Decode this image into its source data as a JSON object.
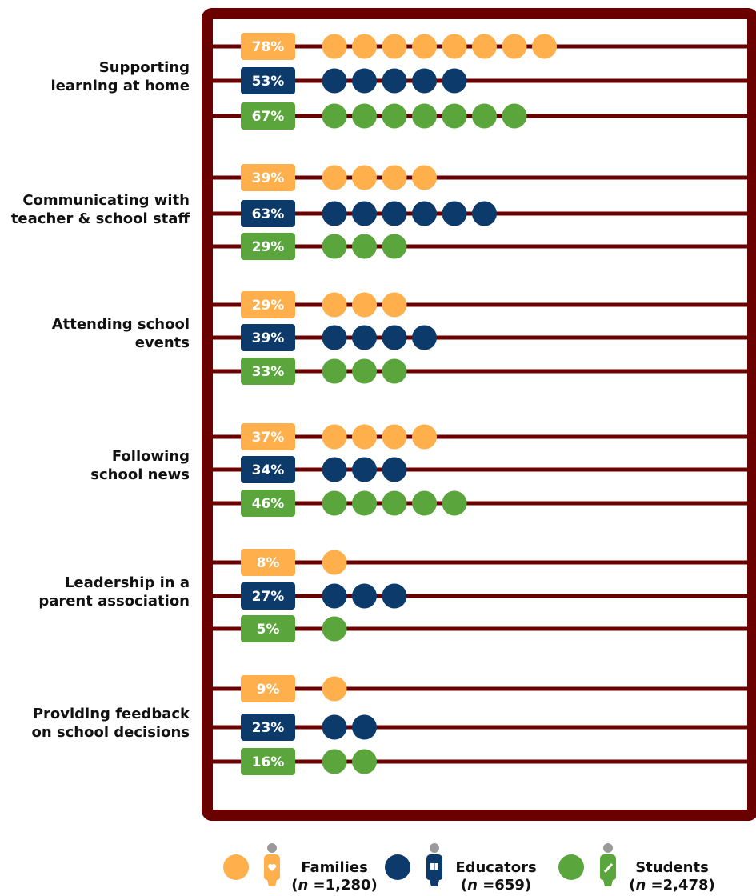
{
  "chart_data": {
    "type": "bar",
    "categories": [
      "Supporting learning at home",
      "Communicating with teacher & school staff",
      "Attending school events",
      "Following school news",
      "Leadership in a parent association",
      "Providing feedback on school decisions"
    ],
    "category_lines": [
      [
        "Supporting",
        "learning at home"
      ],
      [
        "Communicating with",
        "teacher & school staff"
      ],
      [
        "Attending school",
        "events"
      ],
      [
        "Following",
        "school news"
      ],
      [
        "Leadership in a",
        "parent association"
      ],
      [
        "Providing feedback",
        "on school decisions"
      ]
    ],
    "series": [
      {
        "name": "Families",
        "n": "1,280",
        "color": "#FFB04C",
        "values": [
          78,
          39,
          29,
          37,
          8,
          9
        ]
      },
      {
        "name": "Educators",
        "n": "659",
        "color": "#0C3A6B",
        "values": [
          53,
          63,
          39,
          34,
          27,
          23
        ]
      },
      {
        "name": "Students",
        "n": "2,478",
        "color": "#5BA63C",
        "values": [
          67,
          29,
          33,
          46,
          5,
          16
        ]
      }
    ],
    "value_suffix": "%",
    "frame_color": "#6B0000",
    "legend": {
      "position": "bottom",
      "n_prefix": "n"
    }
  }
}
